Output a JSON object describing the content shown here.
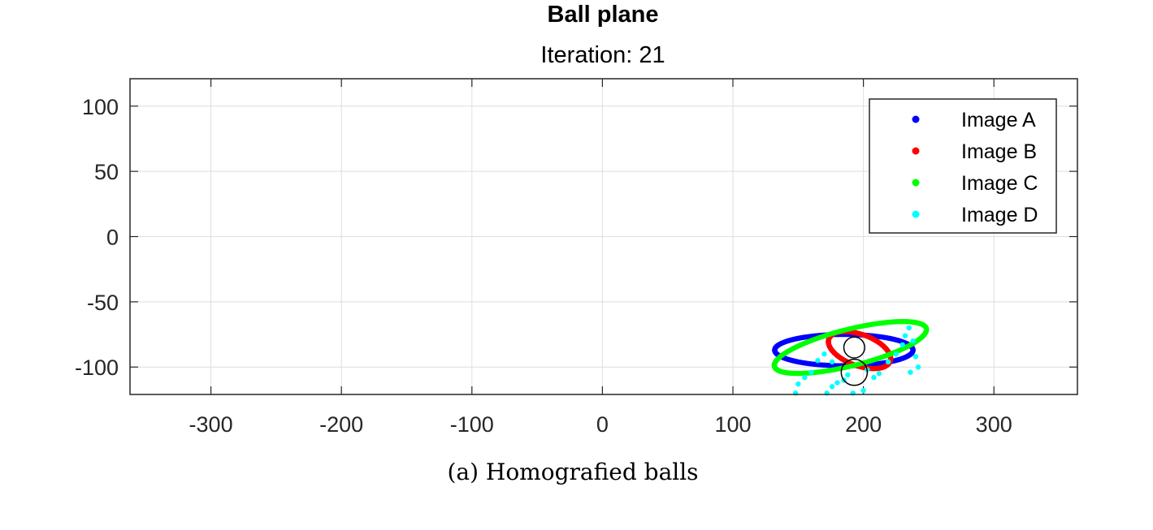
{
  "chart_data": {
    "type": "scatter",
    "title": "Ball plane",
    "subtitle": "Iteration: 21",
    "xlim": [
      -362,
      364
    ],
    "ylim": [
      -121,
      121
    ],
    "x_ticks": [
      -300,
      -200,
      -100,
      0,
      100,
      200,
      300
    ],
    "x_tick_labels": [
      "-300",
      "-200",
      "-100",
      "0",
      "100",
      "200",
      "300"
    ],
    "y_ticks": [
      100,
      50,
      0,
      -50,
      -100
    ],
    "y_tick_labels": [
      "100",
      "50",
      "0",
      "-50",
      "-100"
    ],
    "grid": true,
    "legend_position": "top-right",
    "series": [
      {
        "name": "Image A",
        "color": "#0000ff",
        "shape": "ellipse",
        "center": [
          185,
          -87
        ],
        "semi_axes": [
          53,
          12
        ],
        "rotation_deg": 0
      },
      {
        "name": "Image B",
        "color": "#ff0000",
        "shape": "ellipse",
        "center": [
          197,
          -87
        ],
        "semi_axes": [
          25,
          12
        ],
        "rotation_deg": -20
      },
      {
        "name": "Image C",
        "color": "#00ff00",
        "shape": "ellipse",
        "center": [
          190,
          -85
        ],
        "semi_axes": [
          60,
          14
        ],
        "rotation_deg": 14
      },
      {
        "name": "Image D",
        "color": "#00ffff",
        "shape": "scatter",
        "points": [
          [
            148,
            -120
          ],
          [
            150,
            -113
          ],
          [
            155,
            -108
          ],
          [
            160,
            -104
          ],
          [
            172,
            -120
          ],
          [
            176,
            -115
          ],
          [
            180,
            -112
          ],
          [
            185,
            -110
          ],
          [
            188,
            -106
          ],
          [
            203,
            -102
          ],
          [
            208,
            -108
          ],
          [
            212,
            -105
          ],
          [
            219,
            -96
          ],
          [
            225,
            -90
          ],
          [
            230,
            -83
          ],
          [
            232,
            -76
          ],
          [
            238,
            -80
          ],
          [
            240,
            -92
          ],
          [
            242,
            -100
          ],
          [
            236,
            -104
          ],
          [
            165,
            -95
          ],
          [
            170,
            -90
          ],
          [
            176,
            -96
          ],
          [
            192,
            -120
          ],
          [
            200,
            -118
          ],
          [
            235,
            -70
          ]
        ]
      }
    ],
    "reference_circles": [
      {
        "center": [
          193,
          -85
        ],
        "radius": 8
      },
      {
        "center": [
          193,
          -104
        ],
        "radius": 10
      }
    ]
  },
  "caption": "(a) Homografied balls"
}
